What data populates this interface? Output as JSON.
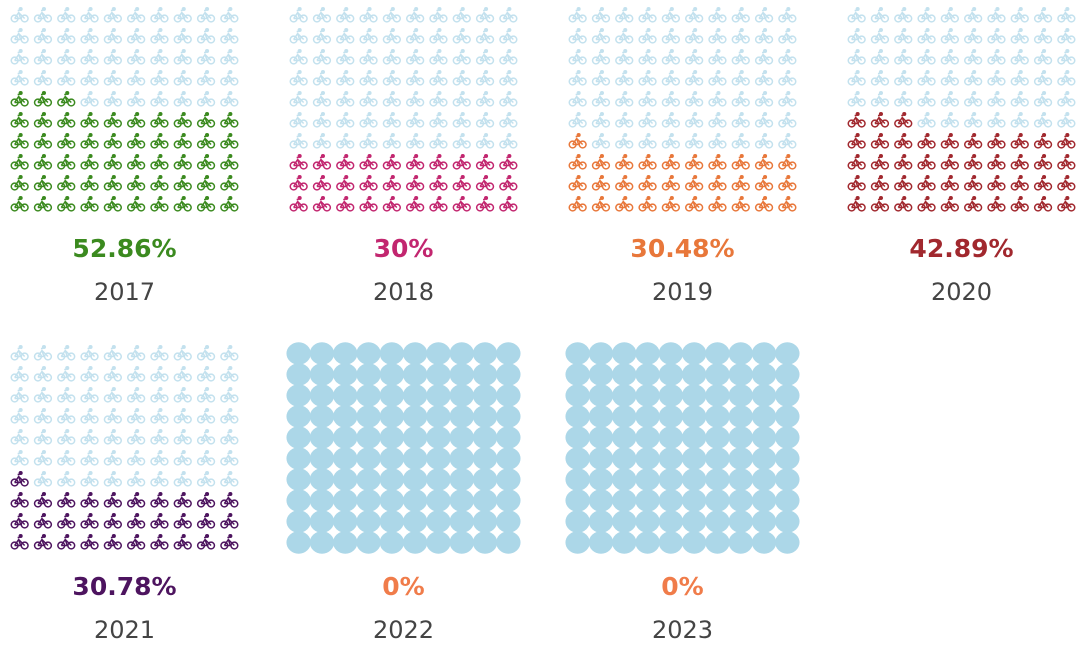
{
  "chart_data": {
    "type": "waffle",
    "categories": [
      "2017",
      "2018",
      "2019",
      "2020",
      "2021",
      "2022",
      "2023"
    ],
    "values": [
      52.86,
      30,
      30.48,
      42.89,
      30.78,
      0,
      0
    ],
    "value_labels": [
      "52.86%",
      "30%",
      "30.48%",
      "42.89%",
      "30.78%",
      "0%",
      "0%"
    ],
    "colors": [
      "#3b8a1f",
      "#c2266f",
      "#e8773a",
      "#a1282e",
      "#4d145f",
      "#f07c4a",
      "#f07c4a"
    ],
    "markers": [
      "bicycle",
      "bicycle",
      "bicycle",
      "bicycle",
      "bicycle",
      "circle",
      "circle"
    ],
    "empty_color": "#c3e1ee",
    "circle_color": "#acd7e8"
  }
}
